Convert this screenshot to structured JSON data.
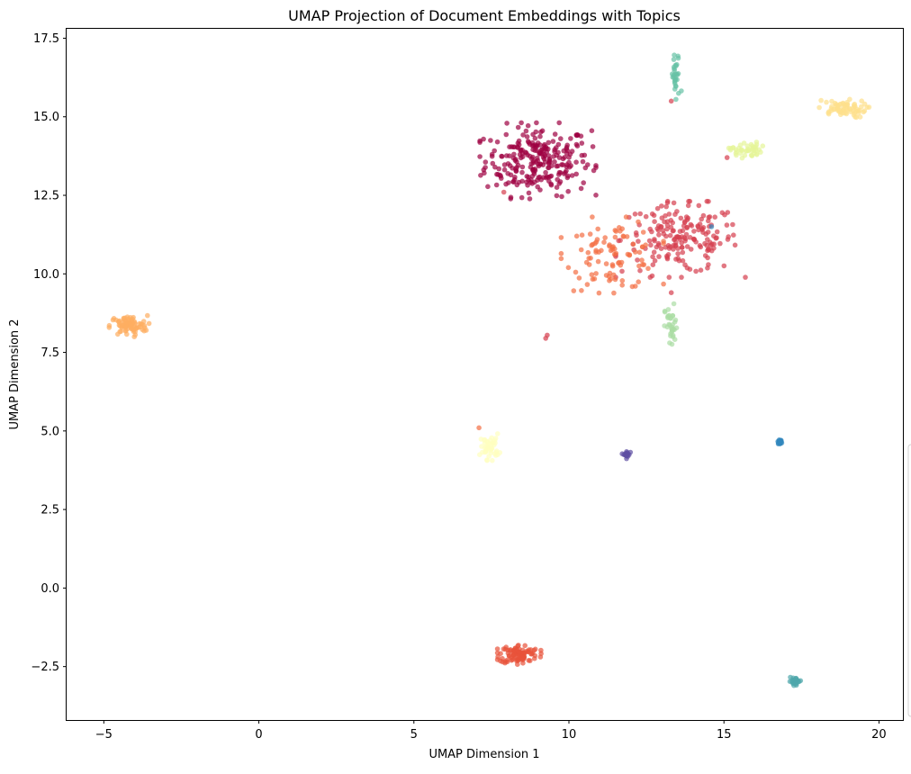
{
  "chart_data": {
    "type": "scatter",
    "title": "UMAP Projection of Document Embeddings with Topics",
    "xlabel": "UMAP Dimension 1",
    "ylabel": "UMAP Dimension 2",
    "xlim": [
      -6.2,
      20.8
    ],
    "ylim": [
      -4.2,
      17.8
    ],
    "xticks": [
      -5,
      0,
      5,
      10,
      15,
      20
    ],
    "xtick_labels": [
      "−5",
      "0",
      "5",
      "10",
      "15",
      "20"
    ],
    "yticks": [
      -2.5,
      0,
      2.5,
      5,
      7.5,
      10,
      12.5,
      15,
      17.5
    ],
    "ytick_labels": [
      "−2.5",
      "0.0",
      "2.5",
      "5.0",
      "7.5",
      "10.0",
      "12.5",
      "15.0",
      "17.5"
    ],
    "grid": false,
    "legend": "right (clipped)",
    "marker_opacity": 0.7,
    "clusters": [
      {
        "color": "#9e0142",
        "center": [
          9.0,
          13.6
        ],
        "spread": [
          0.85,
          0.55
        ],
        "count": 260
      },
      {
        "color": "#d53e4f",
        "center": [
          13.6,
          11.1
        ],
        "spread": [
          0.95,
          0.55
        ],
        "count": 190
      },
      {
        "color": "#f46d43",
        "center": [
          11.4,
          10.6
        ],
        "spread": [
          0.75,
          0.55
        ],
        "count": 95
      },
      {
        "color": "#fdae61",
        "center": [
          -4.2,
          8.35
        ],
        "spread": [
          0.3,
          0.16
        ],
        "count": 85
      },
      {
        "color": "#e8523b",
        "center": [
          8.4,
          -2.1
        ],
        "spread": [
          0.32,
          0.15
        ],
        "count": 95
      },
      {
        "color": "#fee08b",
        "center": [
          18.8,
          15.25
        ],
        "spread": [
          0.4,
          0.14
        ],
        "count": 70
      },
      {
        "color": "#e6f598",
        "center": [
          15.7,
          13.95
        ],
        "spread": [
          0.25,
          0.12
        ],
        "count": 45
      },
      {
        "color": "#abdda4",
        "center": [
          13.3,
          8.3
        ],
        "spread": [
          0.1,
          0.35
        ],
        "count": 35
      },
      {
        "color": "#66c2a5",
        "center": [
          13.45,
          16.2
        ],
        "spread": [
          0.08,
          0.4
        ],
        "count": 30
      },
      {
        "color": "#ffffbf",
        "center": [
          7.45,
          4.5
        ],
        "spread": [
          0.15,
          0.2
        ],
        "count": 45
      },
      {
        "color": "#3288bd",
        "center": [
          16.8,
          4.65
        ],
        "spread": [
          0.03,
          0.03
        ],
        "count": 25
      },
      {
        "color": "#5e4fa2",
        "center": [
          11.85,
          4.25
        ],
        "spread": [
          0.06,
          0.06
        ],
        "count": 20
      },
      {
        "color": "#4fa6ab",
        "center": [
          17.3,
          -2.97
        ],
        "spread": [
          0.1,
          0.06
        ],
        "count": 25
      }
    ],
    "outliers": [
      {
        "x": 7.1,
        "y": 5.1,
        "color": "#f46d43"
      },
      {
        "x": 9.25,
        "y": 7.95,
        "color": "#d53e4f"
      },
      {
        "x": 9.3,
        "y": 8.05,
        "color": "#d53e4f"
      },
      {
        "x": 13.3,
        "y": 15.5,
        "color": "#d53e4f"
      },
      {
        "x": 13.3,
        "y": 9.4,
        "color": "#d53e4f"
      },
      {
        "x": 15.1,
        "y": 13.7,
        "color": "#d53e4f"
      },
      {
        "x": 7.9,
        "y": 12.6,
        "color": "#d53e4f"
      },
      {
        "x": 14.6,
        "y": 11.5,
        "color": "#3288bd"
      }
    ]
  }
}
